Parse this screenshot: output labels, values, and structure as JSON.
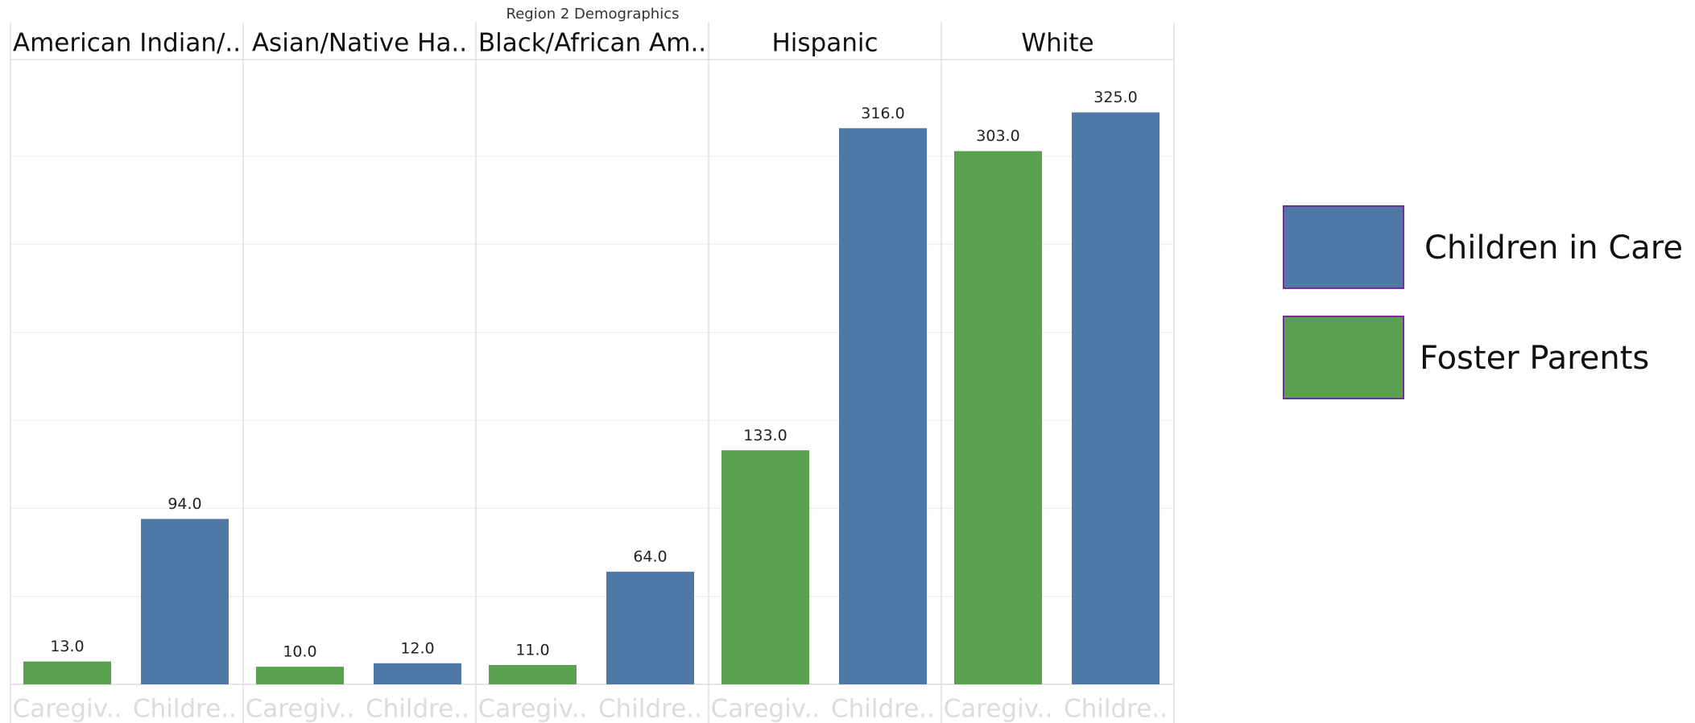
{
  "chart_data": {
    "type": "bar",
    "title": "Region 2 Demographics",
    "categories": [
      "American Indian/..",
      "Asian/Native Ha..",
      "Black/African Am..",
      "Hispanic",
      "White"
    ],
    "bar_labels": [
      "Caregiv..",
      "Childre.."
    ],
    "series": [
      {
        "name": "Foster Parents",
        "color": "#59a14f",
        "values": [
          13,
          10,
          11,
          133,
          303
        ],
        "value_labels": [
          "13.0",
          "10.0",
          "11.0",
          "133.0",
          "303.0"
        ]
      },
      {
        "name": "Children in Care",
        "color": "#4e79a7",
        "values": [
          94,
          12,
          64,
          316,
          325
        ],
        "value_labels": [
          "94.0",
          "12.0",
          "64.0",
          "316.0",
          "325.0"
        ]
      }
    ],
    "ylim": [
      0,
      355
    ],
    "yticks": [
      0,
      50,
      100,
      150,
      200,
      250,
      300
    ],
    "grid": true
  }
}
